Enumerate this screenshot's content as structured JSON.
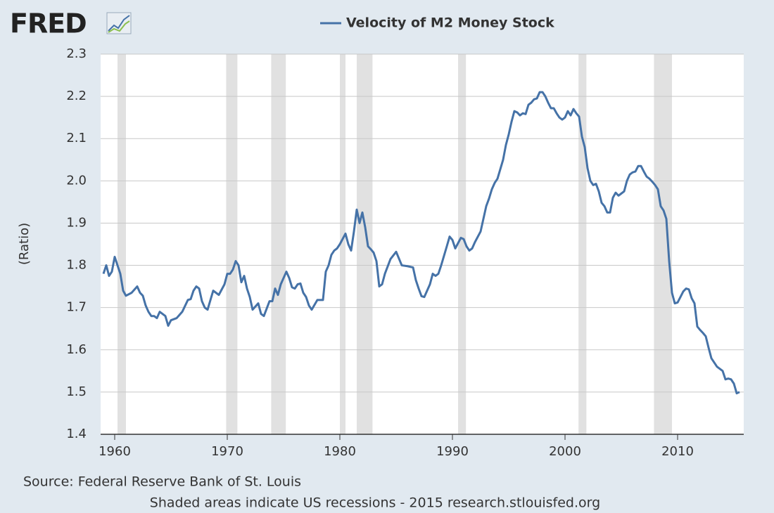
{
  "chart_data": {
    "type": "line",
    "logo": "FRED",
    "title": "Velocity of M2 Money Stock",
    "ylabel": "(Ratio)",
    "source": "Source: Federal Reserve Bank of St. Louis",
    "note": "Shaded areas indicate US recessions - 2015 research.stlouisfed.org",
    "xlim": [
      1958.75,
      2015.875
    ],
    "xticks": [
      1960,
      1970,
      1980,
      1990,
      2000,
      2010
    ],
    "ylim": [
      1.4,
      2.3
    ],
    "yticks": [
      1.4,
      1.5,
      1.6,
      1.7,
      1.8,
      1.9,
      {
        "value": 2,
        "label": "2.0"
      },
      2.1,
      2.2,
      2.3
    ],
    "grid": true,
    "recession_color": "#e1e1e1",
    "recessions": [
      [
        1960.25,
        1961.0
      ],
      [
        1969.9,
        1970.9
      ],
      [
        1973.9,
        1975.2
      ],
      [
        1980.0,
        1980.5
      ],
      [
        1981.5,
        1982.9
      ],
      [
        1990.5,
        1991.2
      ],
      [
        2001.2,
        2001.9
      ],
      [
        2007.9,
        2009.5
      ]
    ],
    "x": [
      1959.0,
      1959.25,
      1959.5,
      1959.75,
      1960.0,
      1960.25,
      1960.5,
      1960.75,
      1961.0,
      1961.5,
      1962.0,
      1962.25,
      1962.5,
      1962.75,
      1963.0,
      1963.25,
      1963.5,
      1963.75,
      1964.0,
      1964.5,
      1964.75,
      1965.0,
      1965.5,
      1966.0,
      1966.5,
      1966.75,
      1967.0,
      1967.25,
      1967.5,
      1967.75,
      1968.0,
      1968.25,
      1968.75,
      1969.25,
      1969.75,
      1970.0,
      1970.25,
      1970.5,
      1970.75,
      1971.0,
      1971.25,
      1971.5,
      1971.75,
      1972.0,
      1972.25,
      1972.75,
      1973.0,
      1973.25,
      1973.75,
      1974.0,
      1974.25,
      1974.5,
      1974.75,
      1975.25,
      1975.5,
      1975.75,
      1976.0,
      1976.25,
      1976.5,
      1976.75,
      1977.0,
      1977.25,
      1977.5,
      1978.0,
      1978.5,
      1978.75,
      1979.0,
      1979.25,
      1979.5,
      1979.75,
      1980.0,
      1980.5,
      1980.75,
      1981.0,
      1981.25,
      1981.5,
      1981.75,
      1982.0,
      1982.25,
      1982.5,
      1982.75,
      1983.0,
      1983.25,
      1983.5,
      1983.75,
      1984.0,
      1984.5,
      1985.0,
      1985.5,
      1986.0,
      1986.5,
      1986.75,
      1987.0,
      1987.25,
      1987.5,
      1988.0,
      1988.25,
      1988.5,
      1988.75,
      1989.0,
      1989.5,
      1989.75,
      1990.0,
      1990.25,
      1990.75,
      1991.0,
      1991.25,
      1991.5,
      1991.75,
      1992.0,
      1992.5,
      1992.75,
      1993.0,
      1993.25,
      1993.5,
      1993.75,
      1994.0,
      1994.5,
      1994.75,
      1995.0,
      1995.25,
      1995.5,
      1995.75,
      1996.0,
      1996.25,
      1996.5,
      1996.75,
      1997.0,
      1997.25,
      1997.5,
      1997.75,
      1998.0,
      1998.25,
      1998.5,
      1998.75,
      1999.0,
      1999.25,
      1999.5,
      1999.75,
      2000.0,
      2000.25,
      2000.5,
      2000.75,
      2001.0,
      2001.25,
      2001.5,
      2001.75,
      2002.0,
      2002.25,
      2002.5,
      2002.75,
      2003.0,
      2003.25,
      2003.5,
      2003.75,
      2004.0,
      2004.25,
      2004.5,
      2004.75,
      2005.0,
      2005.25,
      2005.5,
      2005.75,
      2006.0,
      2006.25,
      2006.5,
      2006.75,
      2007.0,
      2007.25,
      2007.5,
      2007.75,
      2008.0,
      2008.25,
      2008.5,
      2008.75,
      2009.0,
      2009.25,
      2009.5,
      2009.75,
      2010.0,
      2010.25,
      2010.5,
      2010.75,
      2011.0,
      2011.25,
      2011.5,
      2011.75,
      2012.0,
      2012.25,
      2012.5,
      2012.75,
      2013.0,
      2013.25,
      2013.5,
      2013.75,
      2014.0,
      2014.25,
      2014.5,
      2014.75,
      2015.0,
      2015.25,
      2015.5
    ],
    "series": [
      {
        "name": "Velocity of M2 Money Stock",
        "color": "#4572a7",
        "values": [
          1.78,
          1.8,
          1.775,
          1.785,
          1.82,
          1.8,
          1.78,
          1.74,
          1.728,
          1.735,
          1.75,
          1.735,
          1.728,
          1.705,
          1.69,
          1.68,
          1.68,
          1.675,
          1.69,
          1.68,
          1.657,
          1.67,
          1.675,
          1.69,
          1.718,
          1.72,
          1.74,
          1.75,
          1.745,
          1.715,
          1.7,
          1.695,
          1.74,
          1.73,
          1.755,
          1.78,
          1.78,
          1.79,
          1.81,
          1.8,
          1.76,
          1.775,
          1.745,
          1.725,
          1.695,
          1.71,
          1.685,
          1.68,
          1.715,
          1.715,
          1.745,
          1.73,
          1.755,
          1.785,
          1.77,
          1.748,
          1.745,
          1.755,
          1.757,
          1.735,
          1.725,
          1.705,
          1.695,
          1.718,
          1.718,
          1.785,
          1.8,
          1.825,
          1.835,
          1.84,
          1.85,
          1.875,
          1.85,
          1.835,
          1.88,
          1.932,
          1.9,
          1.925,
          1.89,
          1.845,
          1.838,
          1.83,
          1.81,
          1.75,
          1.755,
          1.78,
          1.815,
          1.832,
          1.8,
          1.798,
          1.795,
          1.765,
          1.745,
          1.727,
          1.725,
          1.755,
          1.78,
          1.775,
          1.78,
          1.8,
          1.845,
          1.868,
          1.86,
          1.84,
          1.865,
          1.862,
          1.845,
          1.835,
          1.84,
          1.855,
          1.88,
          1.91,
          1.94,
          1.958,
          1.98,
          1.995,
          2.005,
          2.05,
          2.085,
          2.11,
          2.14,
          2.165,
          2.162,
          2.155,
          2.16,
          2.158,
          2.18,
          2.185,
          2.193,
          2.195,
          2.21,
          2.21,
          2.2,
          2.185,
          2.172,
          2.172,
          2.16,
          2.15,
          2.145,
          2.15,
          2.165,
          2.155,
          2.17,
          2.16,
          2.152,
          2.105,
          2.08,
          2.03,
          2.0,
          1.99,
          1.993,
          1.975,
          1.948,
          1.94,
          1.925,
          1.925,
          1.96,
          1.972,
          1.965,
          1.97,
          1.975,
          2.0,
          2.015,
          2.02,
          2.022,
          2.035,
          2.035,
          2.022,
          2.01,
          2.005,
          1.998,
          1.99,
          1.98,
          1.94,
          1.93,
          1.91,
          1.81,
          1.735,
          1.71,
          1.712,
          1.725,
          1.738,
          1.745,
          1.743,
          1.722,
          1.71,
          1.655,
          1.647,
          1.64,
          1.632,
          1.605,
          1.58,
          1.57,
          1.56,
          1.555,
          1.55,
          1.53,
          1.532,
          1.53,
          1.52,
          1.497,
          1.5
        ]
      }
    ]
  }
}
